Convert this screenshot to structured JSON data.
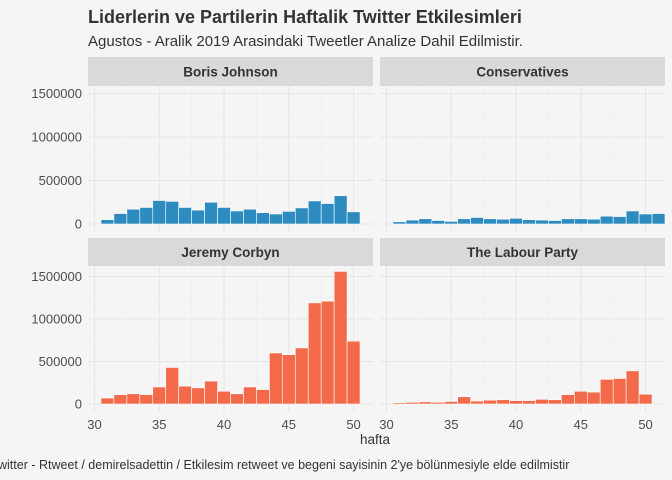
{
  "title": "Liderlerin ve Partilerin Haftalik Twitter Etkilesimleri",
  "subtitle": "Agustos - Aralik 2019 Arasindaki Tweetler Analize Dahil Edilmistir.",
  "caption": "witter - Rtweet / demirelsadettin / Etkilesim retweet ve begeni sayisinin 2'ye bölünmesiyle elde edilmistir",
  "colors": {
    "leaders": "#2e8bc0",
    "parties": "#f36a4a"
  },
  "chart_data": {
    "type": "bar",
    "facet_grid": "2x2",
    "xlabel": "hafta",
    "ylabel": "",
    "xlim": [
      29.5,
      51.5
    ],
    "ylim": [
      0,
      1650000
    ],
    "x_ticks": [
      30,
      35,
      40,
      45,
      50
    ],
    "y_ticks": [
      0,
      500000,
      1000000,
      1500000
    ],
    "x": [
      31,
      32,
      33,
      34,
      35,
      36,
      37,
      38,
      39,
      40,
      41,
      42,
      43,
      44,
      45,
      46,
      47,
      48,
      49,
      50,
      51
    ],
    "panels": [
      {
        "name": "Boris Johnson",
        "color": "leaders",
        "values": [
          50000,
          120000,
          170000,
          190000,
          270000,
          260000,
          190000,
          160000,
          250000,
          190000,
          150000,
          170000,
          130000,
          115000,
          145000,
          185000,
          265000,
          235000,
          325000,
          140000,
          null
        ]
      },
      {
        "name": "Conservatives",
        "color": "leaders",
        "values": [
          25000,
          45000,
          60000,
          40000,
          30000,
          60000,
          75000,
          60000,
          55000,
          65000,
          50000,
          45000,
          40000,
          60000,
          60000,
          55000,
          90000,
          85000,
          150000,
          115000,
          120000
        ]
      },
      {
        "name": "Jeremy Corbyn",
        "color": "parties",
        "values": [
          70000,
          110000,
          120000,
          110000,
          200000,
          430000,
          210000,
          190000,
          270000,
          150000,
          120000,
          200000,
          170000,
          600000,
          580000,
          660000,
          1190000,
          1210000,
          1560000,
          740000,
          null
        ]
      },
      {
        "name": "The Labour Party",
        "color": "parties",
        "values": [
          15000,
          20000,
          25000,
          20000,
          30000,
          85000,
          35000,
          45000,
          50000,
          40000,
          40000,
          55000,
          50000,
          110000,
          150000,
          140000,
          290000,
          300000,
          390000,
          115000,
          null
        ]
      }
    ]
  }
}
